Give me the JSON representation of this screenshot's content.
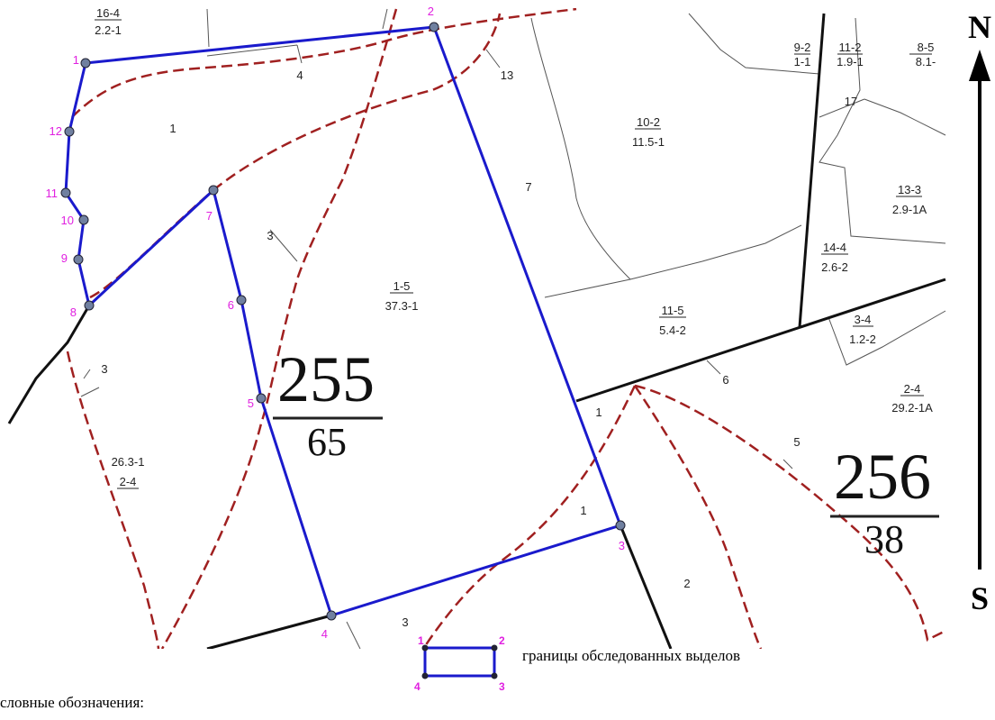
{
  "map": {
    "parcels": [
      {
        "top": "16-4",
        "bottom": "2.2-1"
      },
      {
        "top": "9-2",
        "bottom": "1-1"
      },
      {
        "top": "11-2",
        "bottom": "1.9-1"
      },
      {
        "top": "8-5",
        "bottom": "8.1-"
      },
      {
        "top": "10-2",
        "bottom": "11.5-1"
      },
      {
        "top": "13-3",
        "bottom": "2.9-1A"
      },
      {
        "top": "14-4",
        "bottom": "2.6-2"
      },
      {
        "top": "1-5",
        "bottom": "37.3-1"
      },
      {
        "top": "11-5",
        "bottom": "5.4-2"
      },
      {
        "top": "3-4",
        "bottom": "1.2-2"
      },
      {
        "top": "2-4",
        "bottom": "29.2-1A"
      },
      {
        "top": "26.3-1",
        "bottom": "2-4"
      }
    ],
    "numbers": [
      "4",
      "13",
      "1",
      "7",
      "17",
      "3",
      "3",
      "6",
      "5",
      "1",
      "1",
      "2",
      "3"
    ],
    "quarters": [
      {
        "number": "255",
        "area": "65"
      },
      {
        "number": "256",
        "area": "38"
      }
    ],
    "points": [
      "1",
      "2",
      "3",
      "4",
      "5",
      "6",
      "7",
      "8",
      "9",
      "10",
      "11",
      "12"
    ],
    "compass": {
      "north": "N",
      "south": "S"
    }
  },
  "legend": {
    "title": "словные обозначения:",
    "item": "границы обследованных выделов",
    "corners": [
      "1",
      "2",
      "3",
      "4"
    ]
  }
}
